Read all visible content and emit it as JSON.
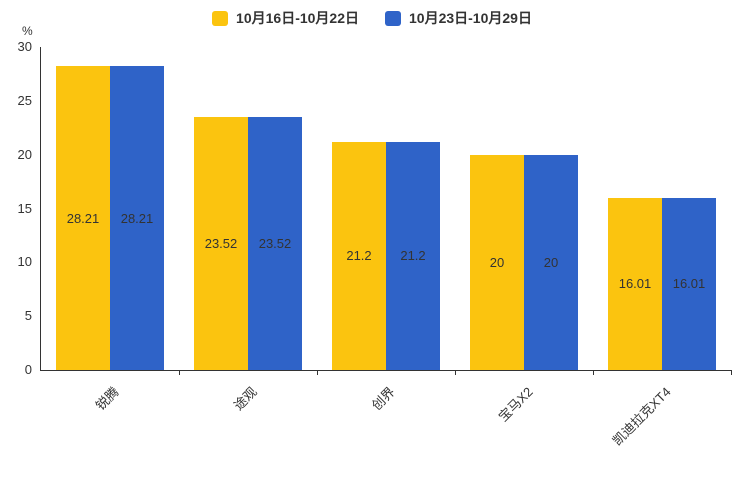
{
  "chart_data": {
    "type": "bar",
    "categories": [
      "锐腾",
      "途观",
      "创界",
      "宝马X2",
      "凯迪拉克XT4"
    ],
    "series": [
      {
        "name": "10月16日-10月22日",
        "color": "#FBC40F",
        "values": [
          28.21,
          23.52,
          21.2,
          20,
          16.01
        ]
      },
      {
        "name": "10月23日-10月29日",
        "color": "#2F63C8",
        "values": [
          28.21,
          23.52,
          21.2,
          20,
          16.01
        ]
      }
    ],
    "title": "",
    "xlabel": "",
    "ylabel": "%",
    "ylim": [
      0,
      30
    ],
    "yticks": [
      0,
      5,
      10,
      15,
      20,
      25,
      30
    ],
    "grid": false,
    "legend_position": "top",
    "value_labels": true,
    "axis_color": "#333333",
    "label_color": "#333333"
  }
}
